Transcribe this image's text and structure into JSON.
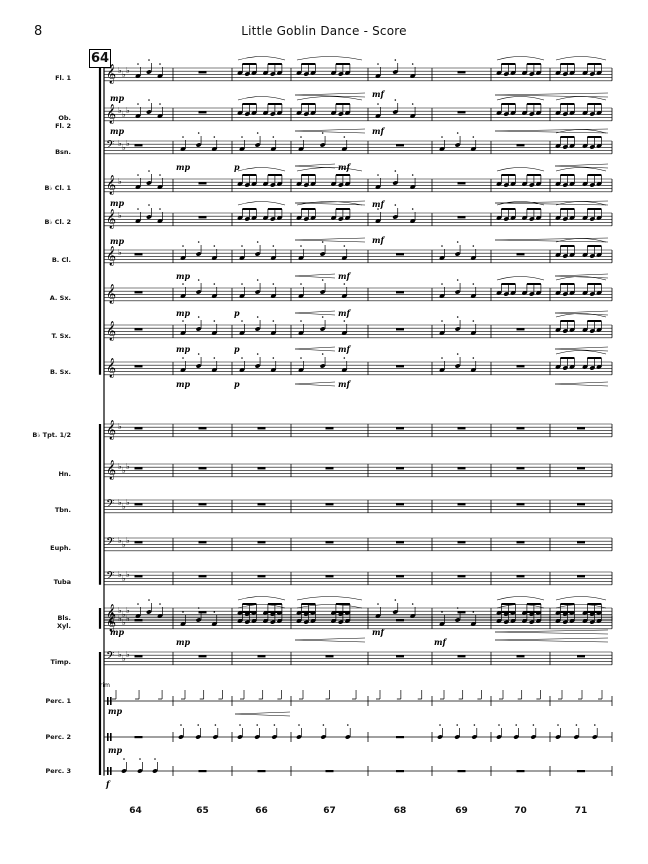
{
  "page": {
    "number": "8",
    "title": "Little Goblin Dance - Score",
    "rehearsal_mark": "64"
  },
  "instruments": [
    {
      "label": "Fl. 1"
    },
    {
      "label": "Ob.\nFl. 2"
    },
    {
      "label": "Bsn."
    },
    {
      "label": "B♭ Cl. 1"
    },
    {
      "label": "B♭ Cl. 2"
    },
    {
      "label": "B. Cl."
    },
    {
      "label": "A. Sx."
    },
    {
      "label": "T. Sx."
    },
    {
      "label": "B. Sx."
    },
    {
      "label": "B♭ Tpt. 1/2"
    },
    {
      "label": "Hn."
    },
    {
      "label": "Tbn."
    },
    {
      "label": "Euph."
    },
    {
      "label": "Tuba"
    },
    {
      "label": "Bls."
    },
    {
      "label": "Xyl."
    },
    {
      "label": "Timp."
    },
    {
      "label": "Perc. 1"
    },
    {
      "label": "Perc. 2"
    },
    {
      "label": "Perc. 3"
    }
  ],
  "measure_numbers": [
    "64",
    "65",
    "66",
    "67",
    "68",
    "69",
    "70",
    "71"
  ],
  "dynamics": {
    "mp": "mp",
    "mf": "mf",
    "p": "p",
    "f": "f"
  },
  "perc_annotation": "rim"
}
